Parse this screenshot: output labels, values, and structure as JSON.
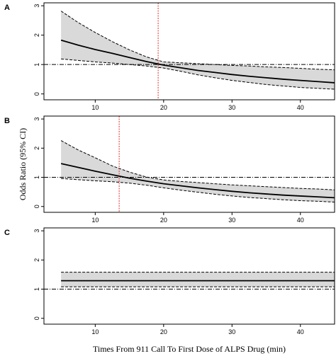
{
  "figure": {
    "ylabel": "Odds Ratio (95% CI)",
    "xlabel": "Times From 911 Call To First Dose of ALPS Drug (min)"
  },
  "chart_data": [
    {
      "panel": "A",
      "type": "line",
      "x": [
        5,
        7.5,
        10,
        12.5,
        15,
        17.5,
        20,
        22.5,
        25,
        27.5,
        30,
        32.5,
        35,
        37.5,
        40,
        42.5,
        45
      ],
      "series": [
        {
          "role": "estimate",
          "values": [
            1.83,
            1.66,
            1.51,
            1.38,
            1.24,
            1.1,
            0.98,
            0.89,
            0.8,
            0.73,
            0.66,
            0.6,
            0.55,
            0.5,
            0.46,
            0.42,
            0.38
          ]
        },
        {
          "role": "upper",
          "values": [
            2.82,
            2.43,
            2.09,
            1.78,
            1.5,
            1.26,
            1.09,
            1.06,
            1.03,
            1.0,
            0.97,
            0.95,
            0.92,
            0.9,
            0.87,
            0.84,
            0.82
          ]
        },
        {
          "role": "lower",
          "values": [
            1.19,
            1.14,
            1.09,
            1.05,
            1.0,
            0.95,
            0.88,
            0.77,
            0.65,
            0.55,
            0.46,
            0.39,
            0.32,
            0.27,
            0.22,
            0.19,
            0.16
          ]
        }
      ],
      "reference_y": 1,
      "vline_x": 19.2,
      "xlim": [
        2.5,
        45
      ],
      "ylim": [
        -0.2,
        3.1
      ],
      "xticks": [
        10,
        20,
        30,
        40
      ],
      "yticks": [
        0,
        1,
        2,
        3
      ]
    },
    {
      "panel": "B",
      "type": "line",
      "x": [
        5,
        7.5,
        10,
        12.5,
        15,
        17.5,
        20,
        22.5,
        25,
        27.5,
        30,
        32.5,
        35,
        37.5,
        40,
        42.5,
        45
      ],
      "series": [
        {
          "role": "estimate",
          "values": [
            1.47,
            1.34,
            1.21,
            1.09,
            0.97,
            0.87,
            0.78,
            0.71,
            0.64,
            0.58,
            0.52,
            0.47,
            0.43,
            0.39,
            0.36,
            0.33,
            0.3
          ]
        },
        {
          "role": "upper",
          "values": [
            2.26,
            1.94,
            1.67,
            1.39,
            1.18,
            1.01,
            0.91,
            0.86,
            0.82,
            0.78,
            0.74,
            0.71,
            0.68,
            0.65,
            0.62,
            0.6,
            0.57
          ]
        },
        {
          "role": "lower",
          "values": [
            0.96,
            0.92,
            0.88,
            0.85,
            0.8,
            0.73,
            0.64,
            0.56,
            0.49,
            0.42,
            0.36,
            0.31,
            0.27,
            0.23,
            0.2,
            0.18,
            0.15
          ]
        }
      ],
      "reference_y": 1,
      "vline_x": 13.5,
      "xlim": [
        2.5,
        45
      ],
      "ylim": [
        -0.2,
        3.1
      ],
      "xticks": [
        10,
        20,
        30,
        40
      ],
      "yticks": [
        0,
        1,
        2,
        3
      ]
    },
    {
      "panel": "C",
      "type": "line",
      "x": [
        5,
        45
      ],
      "series": [
        {
          "role": "estimate",
          "values": [
            1.29,
            1.29
          ]
        },
        {
          "role": "upper",
          "values": [
            1.58,
            1.58
          ]
        },
        {
          "role": "lower",
          "values": [
            1.08,
            1.08
          ]
        }
      ],
      "reference_y": 1,
      "xlim": [
        2.5,
        45
      ],
      "ylim": [
        -0.2,
        3.1
      ],
      "xticks": [
        10,
        20,
        30,
        40
      ],
      "yticks": [
        0,
        1,
        2,
        3
      ]
    }
  ]
}
